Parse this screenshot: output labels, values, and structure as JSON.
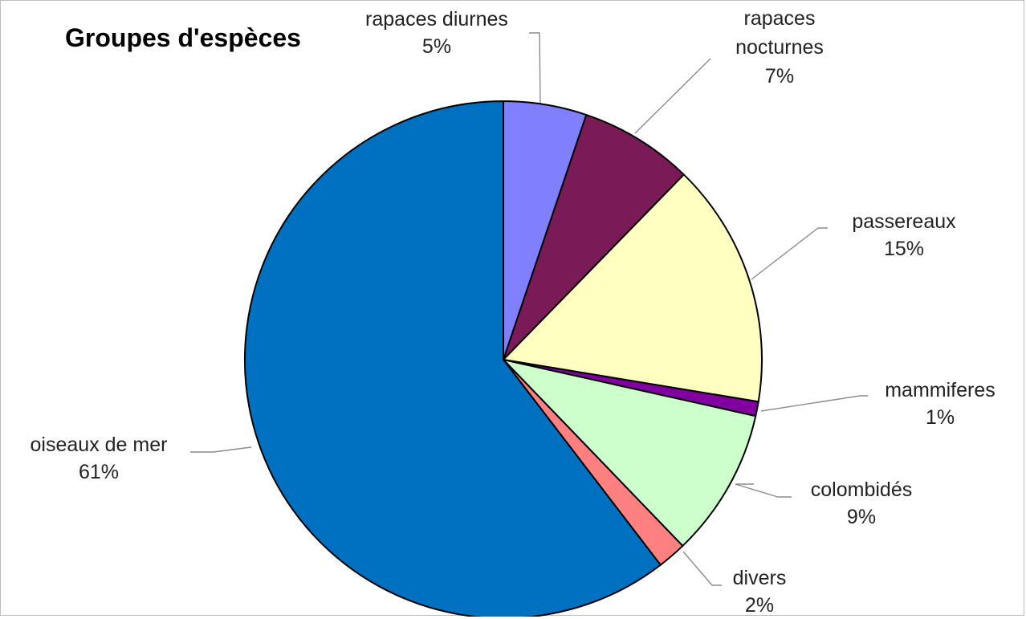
{
  "chart_data": {
    "type": "pie",
    "title": "Groupes d'espèces",
    "start_angle_deg": 0,
    "direction": "clockwise",
    "slices": [
      {
        "label": "rapaces diurnes",
        "pct_label": "5%",
        "value": 5.2,
        "color": "#8080FF"
      },
      {
        "label": "rapaces nocturnes",
        "pct_label": "7%",
        "value": 7.1,
        "color": "#7A1A56"
      },
      {
        "label": "passereaux",
        "pct_label": "15%",
        "value": 15.3,
        "color": "#FFFFC0"
      },
      {
        "label": "mammiferes",
        "pct_label": "1%",
        "value": 0.9,
        "color": "#8000A0"
      },
      {
        "label": "colombidés",
        "pct_label": "9%",
        "value": 9.3,
        "color": "#CCFFCC"
      },
      {
        "label": "divers",
        "pct_label": "2%",
        "value": 1.8,
        "color": "#FF8080"
      },
      {
        "label": "oiseaux de mer",
        "pct_label": "61%",
        "value": 60.4,
        "color": "#0070C0"
      }
    ]
  }
}
